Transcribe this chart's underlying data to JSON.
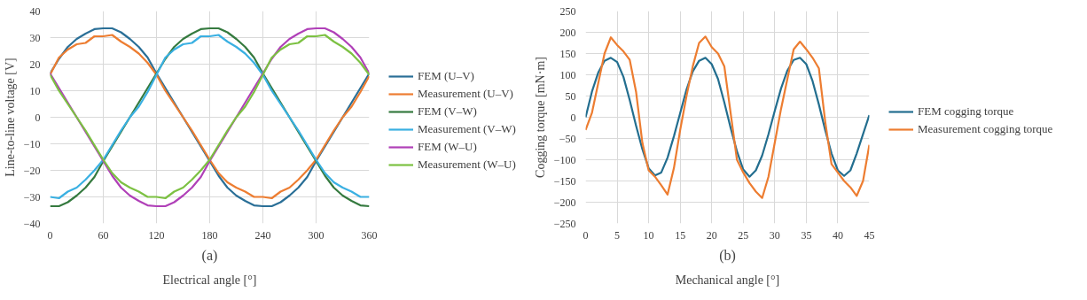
{
  "chart_data": [
    {
      "type": "line",
      "xlabel": "Electrical angle [°]",
      "ylabel": "Line-to-line voltage [V]",
      "annotations": [
        "(a)"
      ],
      "x": [
        0,
        10,
        20,
        30,
        40,
        50,
        60,
        70,
        80,
        90,
        100,
        110,
        120,
        130,
        140,
        150,
        160,
        170,
        180,
        190,
        200,
        210,
        220,
        230,
        240,
        250,
        260,
        270,
        280,
        290,
        300,
        310,
        320,
        330,
        340,
        350,
        360
      ],
      "xlim": [
        0,
        360
      ],
      "xticks": [
        0,
        60,
        120,
        180,
        240,
        300,
        360
      ],
      "ylim": [
        -40,
        40
      ],
      "yticks": [
        -40,
        -30,
        -20,
        -10,
        0,
        10,
        20,
        30,
        40
      ],
      "grid": true,
      "legend": "right",
      "marker": "none",
      "line_style": "solid",
      "series": [
        {
          "name": "FEM (U–V)",
          "color": "#2a6f97",
          "values": [
            16.5,
            22,
            26.5,
            29.5,
            31.5,
            33.2,
            33.5,
            33.5,
            32,
            29.5,
            26.5,
            22.5,
            16.5,
            11,
            5.5,
            0,
            -5.5,
            -11,
            -16.5,
            -22,
            -26.5,
            -29.5,
            -31.5,
            -33.2,
            -33.5,
            -33.5,
            -32,
            -29.5,
            -26.5,
            -22.5,
            -16.5,
            -11,
            -5.5,
            0,
            5.5,
            11,
            16.5
          ]
        },
        {
          "name": "Measurement (U–V)",
          "color": "#ed7d31",
          "values": [
            16,
            22.5,
            25.5,
            27.5,
            28,
            30.5,
            30.5,
            31,
            28.5,
            26.5,
            24,
            20.5,
            16,
            10,
            5,
            0,
            -5,
            -10.5,
            -16,
            -21,
            -24.5,
            -26.5,
            -28,
            -30,
            -30,
            -30.5,
            -28,
            -26.5,
            -23.5,
            -20,
            -16,
            -10.5,
            -5,
            0,
            4,
            9.5,
            15.5
          ]
        },
        {
          "name": "FEM (V–W)",
          "color": "#357a3f",
          "values": [
            -33.5,
            -33.5,
            -32,
            -29.5,
            -26.5,
            -22.5,
            -16.5,
            -11,
            -5.5,
            0,
            5.5,
            11,
            16.5,
            22,
            26.5,
            29.5,
            31.5,
            33.2,
            33.5,
            33.5,
            32,
            29.5,
            26.5,
            22.5,
            16.5,
            11,
            5.5,
            0,
            -5.5,
            -11,
            -16.5,
            -22,
            -26.5,
            -29.5,
            -31.5,
            -33.2,
            -33.5
          ]
        },
        {
          "name": "Measurement (V–W)",
          "color": "#3ab0e2",
          "values": [
            -30,
            -30.5,
            -28,
            -26.5,
            -23.5,
            -20,
            -16,
            -10.5,
            -5,
            0,
            4,
            9.5,
            16,
            22.5,
            25.5,
            27.5,
            28,
            30.5,
            30.5,
            31,
            28.5,
            26.5,
            24,
            20.5,
            16,
            10,
            5,
            0,
            -5,
            -10.5,
            -16,
            -21,
            -24.5,
            -26.5,
            -28,
            -30,
            -30
          ]
        },
        {
          "name": "FEM (W–U)",
          "color": "#b040b8",
          "values": [
            16.5,
            11,
            5.5,
            0,
            -5.5,
            -11,
            -16.5,
            -22,
            -26.5,
            -29.5,
            -31.5,
            -33.2,
            -33.5,
            -33.5,
            -32,
            -29.5,
            -26.5,
            -22.5,
            -16.5,
            -11,
            -5.5,
            0,
            5.5,
            11,
            16.5,
            22,
            26.5,
            29.5,
            31.5,
            33.2,
            33.5,
            33.5,
            32,
            29.5,
            26.5,
            22.5,
            16.5
          ]
        },
        {
          "name": "Measurement (W–U)",
          "color": "#7cc142",
          "values": [
            16,
            10,
            5,
            0,
            -5,
            -10.5,
            -16,
            -21,
            -24.5,
            -26.5,
            -28,
            -30,
            -30,
            -30.5,
            -28,
            -26.5,
            -23.5,
            -20,
            -16,
            -10.5,
            -5,
            0,
            4,
            9.5,
            16,
            22.5,
            25.5,
            27.5,
            28,
            30.5,
            30.5,
            31,
            28.5,
            26.5,
            24,
            20.5,
            16
          ]
        }
      ]
    },
    {
      "type": "line",
      "xlabel": "Mechanical angle [°]",
      "ylabel": "Cogging torque [mN·m]",
      "annotations": [
        "(b)"
      ],
      "x": [
        0,
        1,
        2,
        3,
        4,
        5,
        6,
        7,
        8,
        9,
        10,
        11,
        12,
        13,
        14,
        15,
        16,
        17,
        18,
        19,
        20,
        21,
        22,
        23,
        24,
        25,
        26,
        27,
        28,
        29,
        30,
        31,
        32,
        33,
        34,
        35,
        36,
        37,
        38,
        39,
        40,
        41,
        42,
        43,
        44,
        45
      ],
      "xlim": [
        0,
        45
      ],
      "xticks": [
        0,
        5,
        10,
        15,
        20,
        25,
        30,
        35,
        40,
        45
      ],
      "ylim": [
        -250,
        250
      ],
      "yticks": [
        -250,
        -200,
        -150,
        -100,
        -50,
        0,
        50,
        100,
        150,
        200,
        250
      ],
      "grid": true,
      "legend": "right",
      "marker": "none",
      "line_style": "solid",
      "series": [
        {
          "name": "FEM cogging torque",
          "color": "#236e8f",
          "values": [
            0,
            60,
            105,
            133,
            140,
            130,
            95,
            40,
            -20,
            -75,
            -120,
            -137,
            -130,
            -95,
            -45,
            10,
            65,
            108,
            133,
            140,
            125,
            90,
            35,
            -25,
            -80,
            -123,
            -140,
            -125,
            -90,
            -40,
            15,
            68,
            110,
            135,
            140,
            125,
            85,
            30,
            -30,
            -85,
            -125,
            -138,
            -125,
            -85,
            -40,
            5
          ]
        },
        {
          "name": "Measurement cogging torque",
          "color": "#ed7d31",
          "values": [
            -30,
            10,
            80,
            150,
            188,
            170,
            155,
            135,
            60,
            -60,
            -125,
            -140,
            -160,
            -182,
            -120,
            -30,
            50,
            120,
            175,
            190,
            165,
            150,
            120,
            10,
            -100,
            -130,
            -155,
            -175,
            -190,
            -140,
            -60,
            20,
            90,
            160,
            178,
            160,
            140,
            115,
            -10,
            -110,
            -130,
            -150,
            -165,
            -185,
            -150,
            -65
          ]
        }
      ]
    }
  ]
}
